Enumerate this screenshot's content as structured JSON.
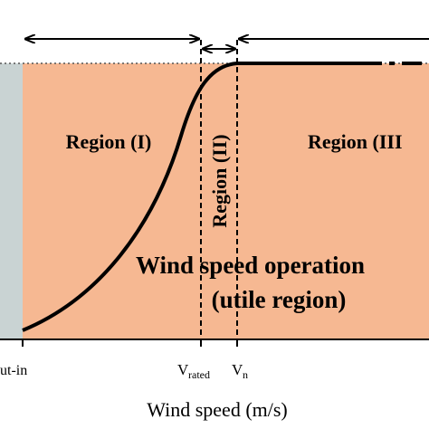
{
  "regions": {
    "region_1": "Region (I)",
    "region_2": "Region (II)",
    "region_3": "Region (III"
  },
  "annotation": {
    "line1": "Wind speed operation",
    "line2": "(utile region)"
  },
  "axis": {
    "cut_in": "ut-in",
    "v_rated": {
      "symbol": "V",
      "subscript": "rated"
    },
    "v_n": {
      "symbol": "V",
      "subscript": "n"
    },
    "title": "Wind speed (m/s)"
  }
}
